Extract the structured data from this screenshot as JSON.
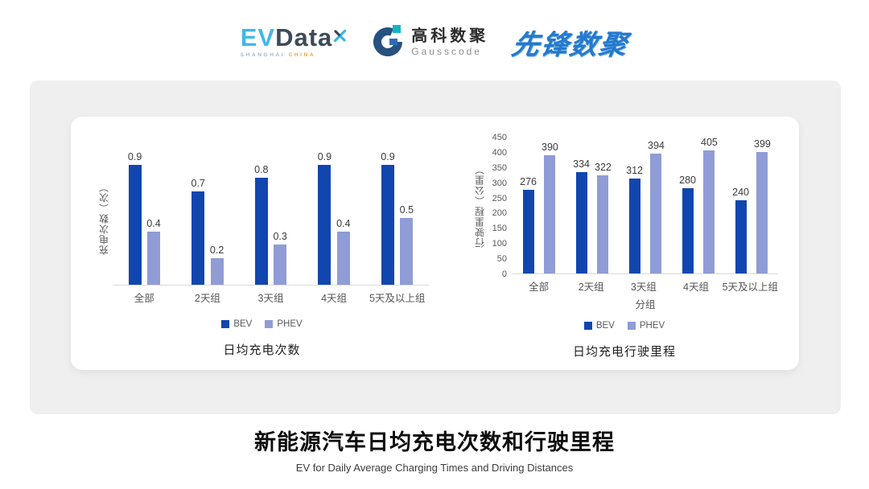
{
  "header": {
    "evdata": {
      "ev": "EV",
      "data": "Data",
      "sub_left": "SHANGHAI",
      "sub_right": "CHINA"
    },
    "gausscode": {
      "name_cn": "高科数聚",
      "name_en": "Gausscode"
    },
    "pioneer": {
      "name_cn": "先锋数聚"
    }
  },
  "chart_data": [
    {
      "type": "bar",
      "title": "日均充电次数",
      "ylabel": "充电次数（次）",
      "categories": [
        "全部",
        "2天组",
        "3天组",
        "4天组",
        "5天及以上组"
      ],
      "series": [
        {
          "name": "BEV",
          "color": "#1146ae",
          "values": [
            0.9,
            0.7,
            0.8,
            0.9,
            0.9
          ]
        },
        {
          "name": "PHEV",
          "color": "#909cd5",
          "values": [
            0.4,
            0.2,
            0.3,
            0.4,
            0.5
          ]
        }
      ],
      "ylim": [
        0,
        1.0
      ],
      "y_ticks_visible": false,
      "grid": false,
      "legend_position": "bottom"
    },
    {
      "type": "bar",
      "title": "日均充电行驶里程",
      "ylabel": "行驶里程（公里）",
      "xlabel": "分组",
      "categories": [
        "全部",
        "2天组",
        "3天组",
        "4天组",
        "5天及以上组"
      ],
      "series": [
        {
          "name": "BEV",
          "color": "#1146ae",
          "values": [
            276,
            334,
            312,
            280,
            240
          ]
        },
        {
          "name": "PHEV",
          "color": "#909cd5",
          "values": [
            390,
            322,
            394,
            405,
            399
          ]
        }
      ],
      "ylim": [
        0,
        450
      ],
      "y_tick_step": 50,
      "y_ticks_visible": true,
      "grid": false,
      "legend_position": "bottom"
    }
  ],
  "footer": {
    "title": "新能源汽车日均充电次数和行驶里程",
    "subtitle": "EV for Daily Average Charging Times and Driving Distances"
  }
}
